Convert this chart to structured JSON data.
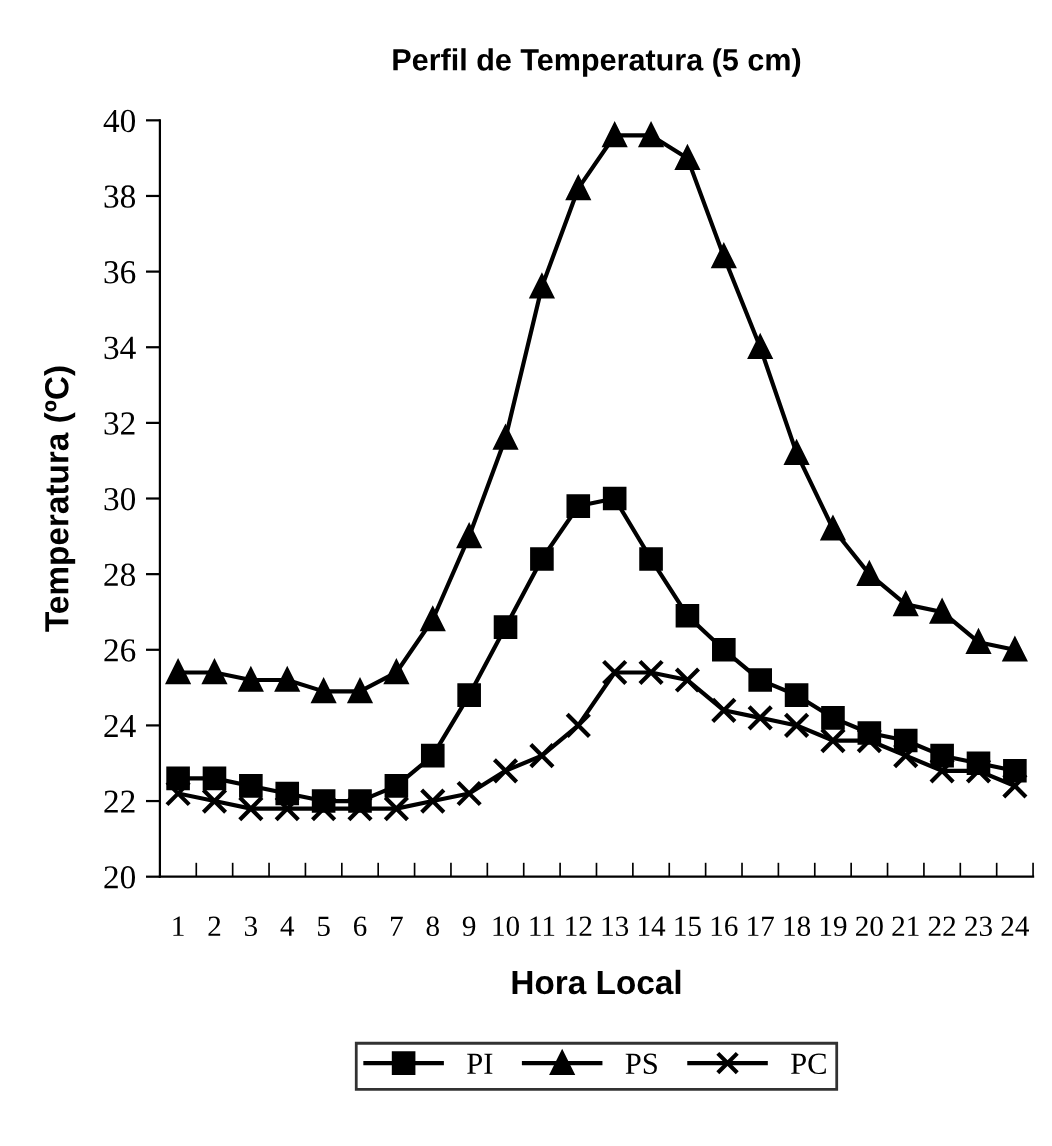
{
  "chart_data": {
    "type": "line",
    "title": "Perfil de Temperatura (5 cm)",
    "xlabel": "Hora Local",
    "ylabel": "Temperatura (ºC)",
    "categories": [
      "1",
      "2",
      "3",
      "4",
      "5",
      "6",
      "7",
      "8",
      "9",
      "10",
      "11",
      "12",
      "13",
      "14",
      "15",
      "16",
      "17",
      "18",
      "19",
      "20",
      "21",
      "22",
      "23",
      "24"
    ],
    "ylim": [
      20,
      40
    ],
    "yticks": [
      20,
      22,
      24,
      26,
      28,
      30,
      32,
      34,
      36,
      38,
      40
    ],
    "grid": false,
    "legend": "bottom",
    "line_style": "solid",
    "series": [
      {
        "name": "PI",
        "color": "#000000",
        "marker": "square",
        "values": [
          22.6,
          22.6,
          22.4,
          22.2,
          22.0,
          22.0,
          22.4,
          23.2,
          24.8,
          26.6,
          28.4,
          29.8,
          30.0,
          28.4,
          26.9,
          26.0,
          25.2,
          24.8,
          24.2,
          23.8,
          23.6,
          23.2,
          23.0,
          22.8
        ]
      },
      {
        "name": "PS",
        "color": "#000000",
        "marker": "triangle",
        "values": [
          25.4,
          25.4,
          25.2,
          25.2,
          24.9,
          24.9,
          25.4,
          26.8,
          29.0,
          31.6,
          35.6,
          38.2,
          39.6,
          39.6,
          39.0,
          36.4,
          34.0,
          31.2,
          29.2,
          28.0,
          27.2,
          27.0,
          26.2,
          26.0
        ]
      },
      {
        "name": "PC",
        "color": "#000000",
        "marker": "cross",
        "values": [
          22.2,
          22.0,
          21.8,
          21.8,
          21.8,
          21.8,
          21.8,
          22.0,
          22.2,
          22.8,
          23.2,
          24.0,
          25.4,
          25.4,
          25.2,
          24.4,
          24.2,
          24.0,
          23.6,
          23.6,
          23.2,
          22.8,
          22.8,
          22.4
        ]
      }
    ]
  }
}
